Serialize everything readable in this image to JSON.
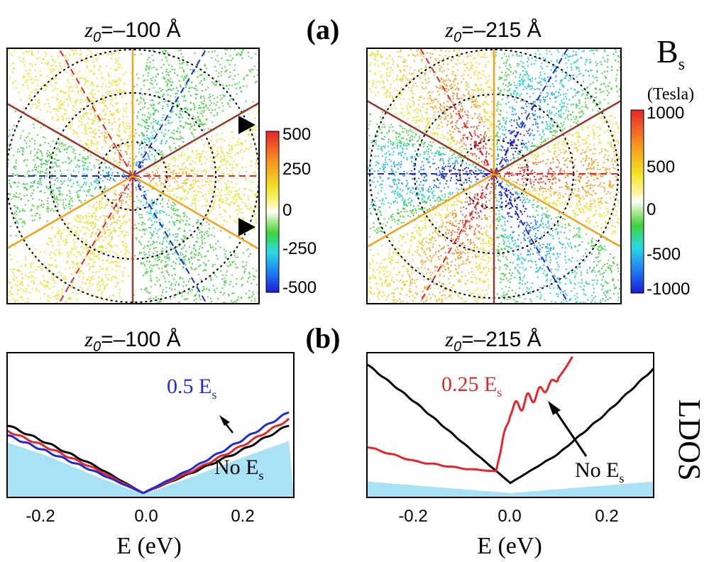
{
  "panel_labels": {
    "a": "(a)",
    "b": "(b)"
  },
  "titles": {
    "a_left": {
      "var": "z",
      "sub": "0",
      "rest": "=–100 Å"
    },
    "a_right": {
      "var": "z",
      "sub": "0",
      "rest": "=–215 Å"
    },
    "b_left": {
      "var": "z",
      "sub": "0",
      "rest": "=–100 Å"
    },
    "b_right": {
      "var": "z",
      "sub": "0",
      "rest": "=–215 Å"
    }
  },
  "bs_label": {
    "main": "B",
    "sub": "s",
    "unit": "(Tesla)"
  },
  "ldos_label": "LDOS",
  "colorbar_left": {
    "ticks": [
      "500",
      "250",
      "0",
      "-250",
      "-500"
    ]
  },
  "colorbar_right": {
    "ticks": [
      "1000",
      "500",
      "0",
      "-500",
      "-1000"
    ]
  },
  "colors": {
    "brown": "#9b3a2a",
    "orange": "#f5a21a",
    "red": "#e8262a",
    "blue": "#1f2ad8",
    "black": "#000000",
    "fill": "#a8e2f4",
    "dot_green": "#3fd23a",
    "dot_yellow": "#f2e226"
  },
  "chart_data": [
    {
      "type": "line",
      "title": "z0=–100 Å",
      "xlabel": "E (eV)",
      "ylabel": "LDOS",
      "xlim": [
        -0.28,
        0.31
      ],
      "xticks": [
        "-0.2",
        "0.0",
        "0.2"
      ],
      "annotations": {
        "top": {
          "value": "0.5 E",
          "sub": "s"
        },
        "bottom": {
          "value": "No E",
          "sub": "s"
        }
      },
      "series": [
        {
          "name": "blue (0.5 Es)",
          "x": [
            -0.28,
            -0.2,
            -0.1,
            0,
            0.1,
            0.2,
            0.3
          ],
          "y": [
            0.43,
            0.32,
            0.18,
            0.03,
            0.2,
            0.39,
            0.59
          ]
        },
        {
          "name": "red",
          "x": [
            -0.28,
            -0.2,
            -0.1,
            0,
            0.1,
            0.2,
            0.3
          ],
          "y": [
            0.46,
            0.35,
            0.2,
            0.03,
            0.18,
            0.35,
            0.54
          ]
        },
        {
          "name": "black (No Es)",
          "x": [
            -0.28,
            -0.2,
            -0.1,
            0,
            0.1,
            0.2,
            0.3
          ],
          "y": [
            0.5,
            0.38,
            0.22,
            0.03,
            0.17,
            0.32,
            0.5
          ]
        },
        {
          "name": "fill",
          "x": [
            -0.28,
            -0.2,
            -0.1,
            0,
            0.1,
            0.2,
            0.3
          ],
          "y": [
            0.38,
            0.29,
            0.15,
            0.02,
            0.14,
            0.27,
            0.39
          ]
        }
      ]
    },
    {
      "type": "line",
      "title": "z0=–215 Å",
      "xlabel": "E (eV)",
      "ylabel": "LDOS",
      "xlim": [
        -0.3,
        0.3
      ],
      "xticks": [
        "-0.2",
        "0.0",
        "0.2"
      ],
      "annotations": {
        "top": {
          "value": "0.25 E",
          "sub": "s"
        },
        "bottom": {
          "value": "No E",
          "sub": "s"
        }
      },
      "series": [
        {
          "name": "black (No Es)",
          "x": [
            -0.3,
            -0.2,
            -0.1,
            0,
            0.1,
            0.2,
            0.3
          ],
          "y": [
            0.92,
            0.66,
            0.38,
            0.1,
            0.3,
            0.58,
            0.89
          ]
        },
        {
          "name": "red (0.25 Es)",
          "x": [
            -0.3,
            -0.2,
            -0.1,
            -0.03,
            0.0,
            0.05,
            0.1,
            0.13
          ],
          "y": [
            0.35,
            0.25,
            0.2,
            0.18,
            0.6,
            0.7,
            0.82,
            0.97
          ]
        },
        {
          "name": "fill",
          "x": [
            -0.3,
            -0.15,
            0,
            0.15,
            0.3
          ],
          "y": [
            0.11,
            0.07,
            0.03,
            0.07,
            0.11
          ]
        }
      ]
    }
  ]
}
